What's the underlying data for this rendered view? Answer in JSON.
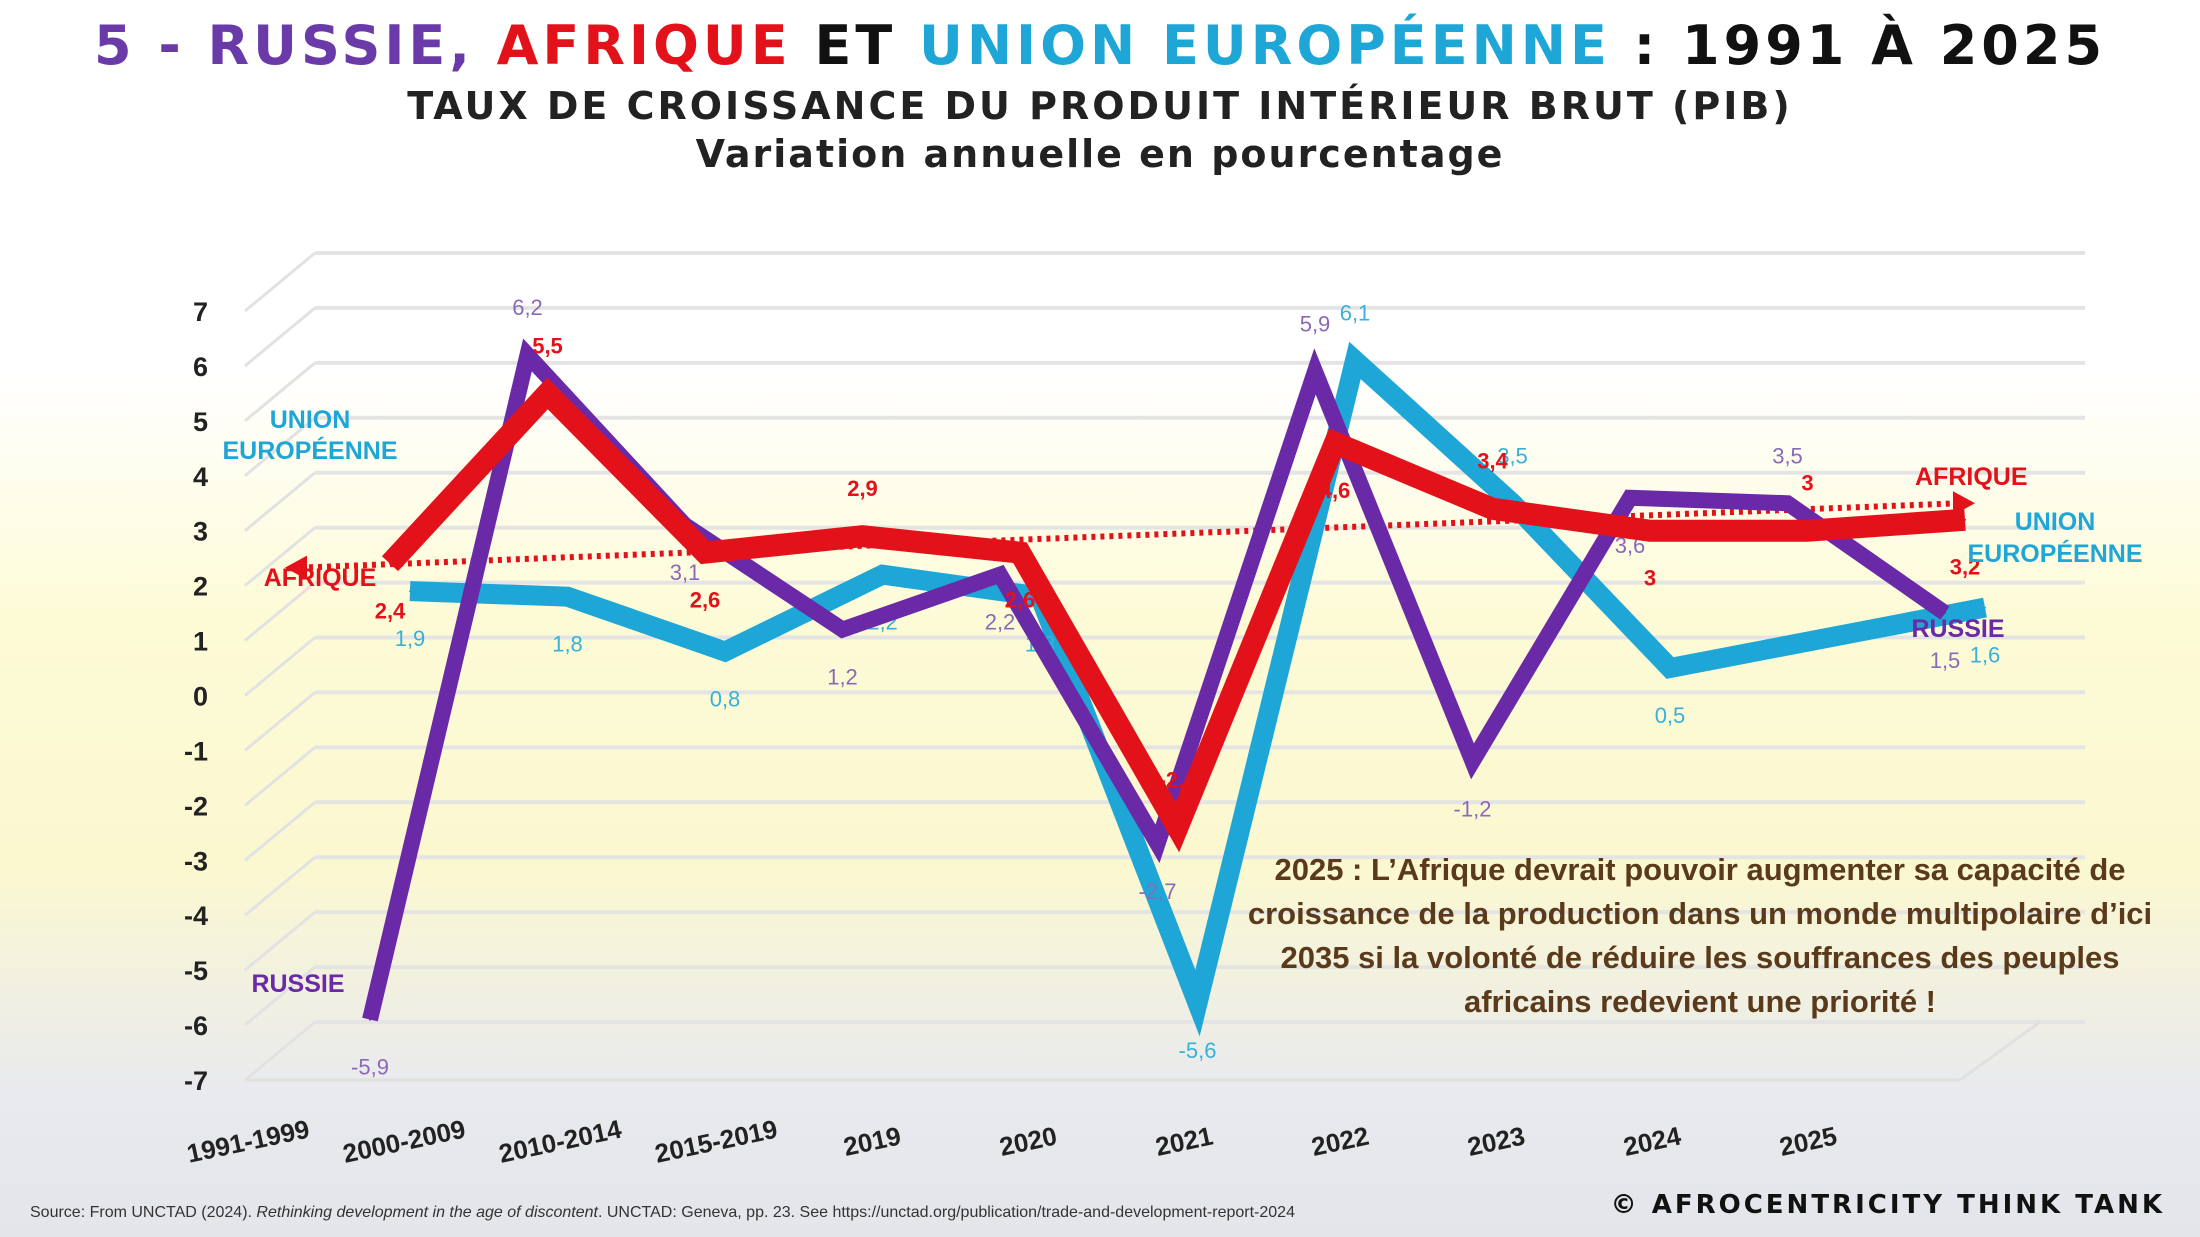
{
  "title": {
    "part1": "5 - ",
    "russie": "RUSSIE, ",
    "afrique": "AFRIQUE ",
    "et": "ET ",
    "ue": "UNION EUROPÉENNE ",
    "rest": ": 1991 À 2025"
  },
  "subtitle1": "TAUX DE CROISSANCE DU PRODUIT INTÉRIEUR BRUT (PIB)",
  "subtitle2": "Variation annuelle en pourcentage",
  "colors": {
    "russie": "#6a2aa8",
    "afrique": "#e3121a",
    "ue": "#1ea6d6",
    "title_purple": "#6a3aa8"
  },
  "chart_data": {
    "type": "line",
    "categories": [
      "1991-1999",
      "2000-2009",
      "2010-2014",
      "2015-2019",
      "2019",
      "2020",
      "2021",
      "2022",
      "2023",
      "2024",
      "2025"
    ],
    "ylim": [
      -7,
      7
    ],
    "yticks": [
      7,
      6,
      5,
      4,
      3,
      2,
      1,
      0,
      -1,
      -2,
      -3,
      -4,
      -5,
      -6,
      -7
    ],
    "grid": true,
    "style": "3d",
    "series": [
      {
        "name": "RUSSIE",
        "values": [
          -5.9,
          6.2,
          3.1,
          1.2,
          2.2,
          -2.7,
          5.9,
          -1.2,
          3.6,
          3.5,
          1.5
        ],
        "labels": [
          "-5,9",
          "6,2",
          "3,1",
          "1,2",
          "2,2",
          "-2,7",
          "5,9",
          "-1,2",
          "3,6",
          "3,5",
          "1,5"
        ]
      },
      {
        "name": "AFRIQUE",
        "values": [
          2.4,
          5.5,
          2.6,
          2.9,
          2.6,
          -2.4,
          4.6,
          3.4,
          3,
          3,
          3.2
        ],
        "labels": [
          "2,4",
          "5,5",
          "2,6",
          "2,9",
          "2,6",
          "-2,4",
          "4,6",
          "3,4",
          "3",
          "3",
          "3,2"
        ]
      },
      {
        "name": "UNION EUROPÉENNE",
        "values": [
          1.9,
          1.8,
          0.8,
          2.2,
          1.8,
          -5.6,
          6.1,
          3.5,
          0.5,
          null,
          1.6
        ],
        "labels": [
          "1,9",
          "1,8",
          "0,8",
          "2,2",
          "1,8",
          "-5,6",
          "6,1",
          "3,5",
          "0,5",
          "",
          "1,6"
        ]
      }
    ],
    "trendline": {
      "series": "AFRIQUE",
      "style": "dotted",
      "direction": "up"
    },
    "series_labels": {
      "ue_left_1": "UNION",
      "ue_left_2": "EUROPÉENNE",
      "afrique_left": "AFRIQUE",
      "russie_left": "RUSSIE",
      "afrique_right": "AFRIQUE",
      "ue_right_1": "UNION",
      "ue_right_2": "EUROPÉENNE",
      "russie_right": "RUSSIE"
    },
    "annotation": "2025 : L’Afrique devrait pouvoir augmenter sa capacité de croissance de la production dans un monde multipolaire d’ici 2035 si la volonté de réduire les souffrances des peuples africains redevient une priorité !"
  },
  "source": {
    "prefix": "Source: From UNCTAD (2024). ",
    "italic": "Rethinking development in the age of discontent",
    "suffix": ". UNCTAD: Geneva, pp. 23. See https://unctad.org/publication/trade-and-development-report-2024"
  },
  "copyright": "© AFROCENTRICITY THINK TANK"
}
